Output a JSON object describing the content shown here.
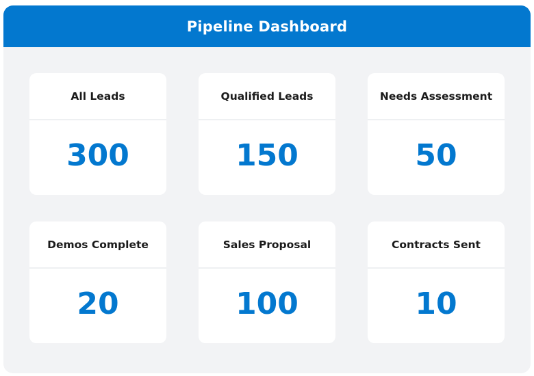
{
  "header": {
    "title": "Pipeline Dashboard"
  },
  "colors": {
    "accent": "#0378cf",
    "panel_background": "#f2f3f5",
    "card_background": "#ffffff",
    "label_text": "#1b1b1b"
  },
  "cards": [
    {
      "label": "All Leads",
      "value": "300"
    },
    {
      "label": "Qualified Leads",
      "value": "150"
    },
    {
      "label": "Needs Assessment",
      "value": "50"
    },
    {
      "label": "Demos Complete",
      "value": "20"
    },
    {
      "label": "Sales Proposal",
      "value": "100"
    },
    {
      "label": "Contracts Sent",
      "value": "10"
    }
  ]
}
